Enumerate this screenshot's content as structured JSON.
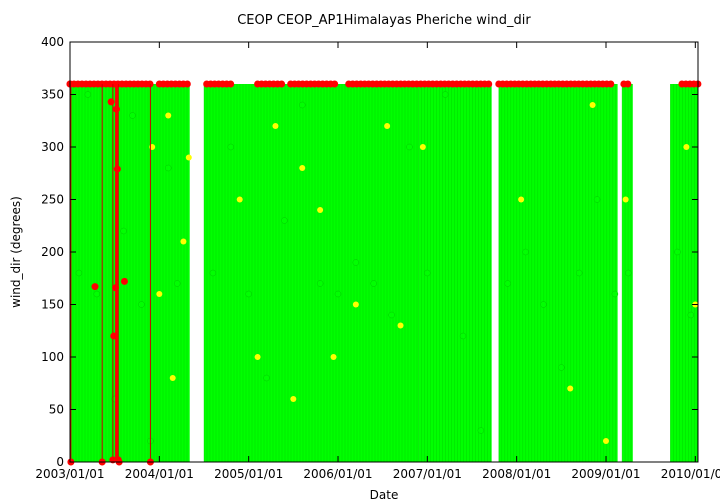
{
  "chart_data": {
    "type": "scatter",
    "title": "CEOP CEOP_AP1Himalayas Pheriche  wind_dir",
    "xlabel": "Date",
    "ylabel": "wind_dir (degrees)",
    "ylim": [
      0,
      400
    ],
    "yticks": [
      0,
      50,
      100,
      150,
      200,
      250,
      300,
      350,
      400
    ],
    "xlim_years": [
      2003.0,
      2010.03
    ],
    "xticks": [
      {
        "label": "2003/01/01",
        "year": 2003.0
      },
      {
        "label": "2004/01/01",
        "year": 2004.0
      },
      {
        "label": "2005/01/01",
        "year": 2005.0
      },
      {
        "label": "2006/01/01",
        "year": 2006.0
      },
      {
        "label": "2007/01/01",
        "year": 2007.0
      },
      {
        "label": "2008/01/01",
        "year": 2008.0
      },
      {
        "label": "2009/01/01",
        "year": 2009.0
      },
      {
        "label": "2010/01/01",
        "year": 2010.0
      }
    ],
    "colors": {
      "axis": "#000000",
      "green": "#00ff00",
      "yellow": "#ffff00",
      "red": "#ff0000",
      "line_green": "#00cc00",
      "line_red": "#cc0000"
    },
    "series": [
      {
        "name": "data (green)",
        "color": "#00ff00",
        "segments_years": [
          [
            2003.0,
            2004.34
          ],
          [
            2004.5,
            2006.9
          ],
          [
            2006.9,
            2007.72
          ],
          [
            2007.8,
            2009.13
          ],
          [
            2009.18,
            2009.3
          ],
          [
            2009.72,
            2010.03
          ]
        ],
        "points": [
          {
            "x": 2003.1,
            "y": 180
          },
          {
            "x": 2003.2,
            "y": 350
          },
          {
            "x": 2003.3,
            "y": 160
          },
          {
            "x": 2003.5,
            "y": 60
          },
          {
            "x": 2003.6,
            "y": 220
          },
          {
            "x": 2003.7,
            "y": 330
          },
          {
            "x": 2003.8,
            "y": 150
          },
          {
            "x": 2003.9,
            "y": 20
          },
          {
            "x": 2004.1,
            "y": 280
          },
          {
            "x": 2004.2,
            "y": 170
          },
          {
            "x": 2004.6,
            "y": 180
          },
          {
            "x": 2004.8,
            "y": 300
          },
          {
            "x": 2005.0,
            "y": 160
          },
          {
            "x": 2005.2,
            "y": 80
          },
          {
            "x": 2005.4,
            "y": 230
          },
          {
            "x": 2005.6,
            "y": 340
          },
          {
            "x": 2005.8,
            "y": 170
          },
          {
            "x": 2006.0,
            "y": 160
          },
          {
            "x": 2006.2,
            "y": 190
          },
          {
            "x": 2006.4,
            "y": 170
          },
          {
            "x": 2006.6,
            "y": 140
          },
          {
            "x": 2006.8,
            "y": 300
          },
          {
            "x": 2007.0,
            "y": 180
          },
          {
            "x": 2007.2,
            "y": 350
          },
          {
            "x": 2007.4,
            "y": 120
          },
          {
            "x": 2007.6,
            "y": 30
          },
          {
            "x": 2007.9,
            "y": 170
          },
          {
            "x": 2008.1,
            "y": 200
          },
          {
            "x": 2008.3,
            "y": 150
          },
          {
            "x": 2008.5,
            "y": 90
          },
          {
            "x": 2008.7,
            "y": 180
          },
          {
            "x": 2008.9,
            "y": 250
          },
          {
            "x": 2009.1,
            "y": 160
          },
          {
            "x": 2009.25,
            "y": 180
          },
          {
            "x": 2009.8,
            "y": 200
          },
          {
            "x": 2009.95,
            "y": 140
          }
        ]
      },
      {
        "name": "data (yellow)",
        "color": "#ffff00",
        "points": [
          {
            "x": 2003.92,
            "y": 300
          },
          {
            "x": 2004.0,
            "y": 160
          },
          {
            "x": 2004.1,
            "y": 330
          },
          {
            "x": 2004.15,
            "y": 80
          },
          {
            "x": 2004.27,
            "y": 210
          },
          {
            "x": 2004.33,
            "y": 290
          },
          {
            "x": 2004.9,
            "y": 250
          },
          {
            "x": 2005.1,
            "y": 100
          },
          {
            "x": 2005.3,
            "y": 320
          },
          {
            "x": 2005.5,
            "y": 60
          },
          {
            "x": 2005.6,
            "y": 280
          },
          {
            "x": 2005.8,
            "y": 240
          },
          {
            "x": 2005.95,
            "y": 100
          },
          {
            "x": 2006.2,
            "y": 150
          },
          {
            "x": 2006.55,
            "y": 320
          },
          {
            "x": 2006.7,
            "y": 130
          },
          {
            "x": 2006.95,
            "y": 300
          },
          {
            "x": 2008.05,
            "y": 250
          },
          {
            "x": 2008.6,
            "y": 70
          },
          {
            "x": 2008.85,
            "y": 340
          },
          {
            "x": 2009.0,
            "y": 20
          },
          {
            "x": 2009.22,
            "y": 250
          },
          {
            "x": 2009.9,
            "y": 300
          },
          {
            "x": 2010.0,
            "y": 150
          }
        ]
      },
      {
        "name": "data (red)",
        "color": "#ff0000",
        "points": [
          {
            "x": 2003.0,
            "y": 360
          },
          {
            "x": 2003.01,
            "y": 0
          },
          {
            "x": 2003.28,
            "y": 167
          },
          {
            "x": 2003.36,
            "y": 0
          },
          {
            "x": 2003.46,
            "y": 343
          },
          {
            "x": 2003.48,
            "y": 2
          },
          {
            "x": 2003.49,
            "y": 120
          },
          {
            "x": 2003.51,
            "y": 166
          },
          {
            "x": 2003.52,
            "y": 336
          },
          {
            "x": 2003.53,
            "y": 279
          },
          {
            "x": 2003.54,
            "y": 2
          },
          {
            "x": 2003.61,
            "y": 172
          },
          {
            "x": 2003.9,
            "y": 0
          },
          {
            "x": 2003.55,
            "y": 0
          }
        ],
        "top_band_years": [
          [
            2003.0,
            2003.9
          ],
          [
            2004.0,
            2004.34
          ],
          [
            2004.53,
            2004.83
          ],
          [
            2005.1,
            2005.4
          ],
          [
            2005.47,
            2006.0
          ],
          [
            2006.12,
            2007.72
          ],
          [
            2007.8,
            2009.06
          ],
          [
            2009.2,
            2009.26
          ],
          [
            2009.85,
            2010.03
          ]
        ],
        "top_band_value": 360
      }
    ]
  }
}
